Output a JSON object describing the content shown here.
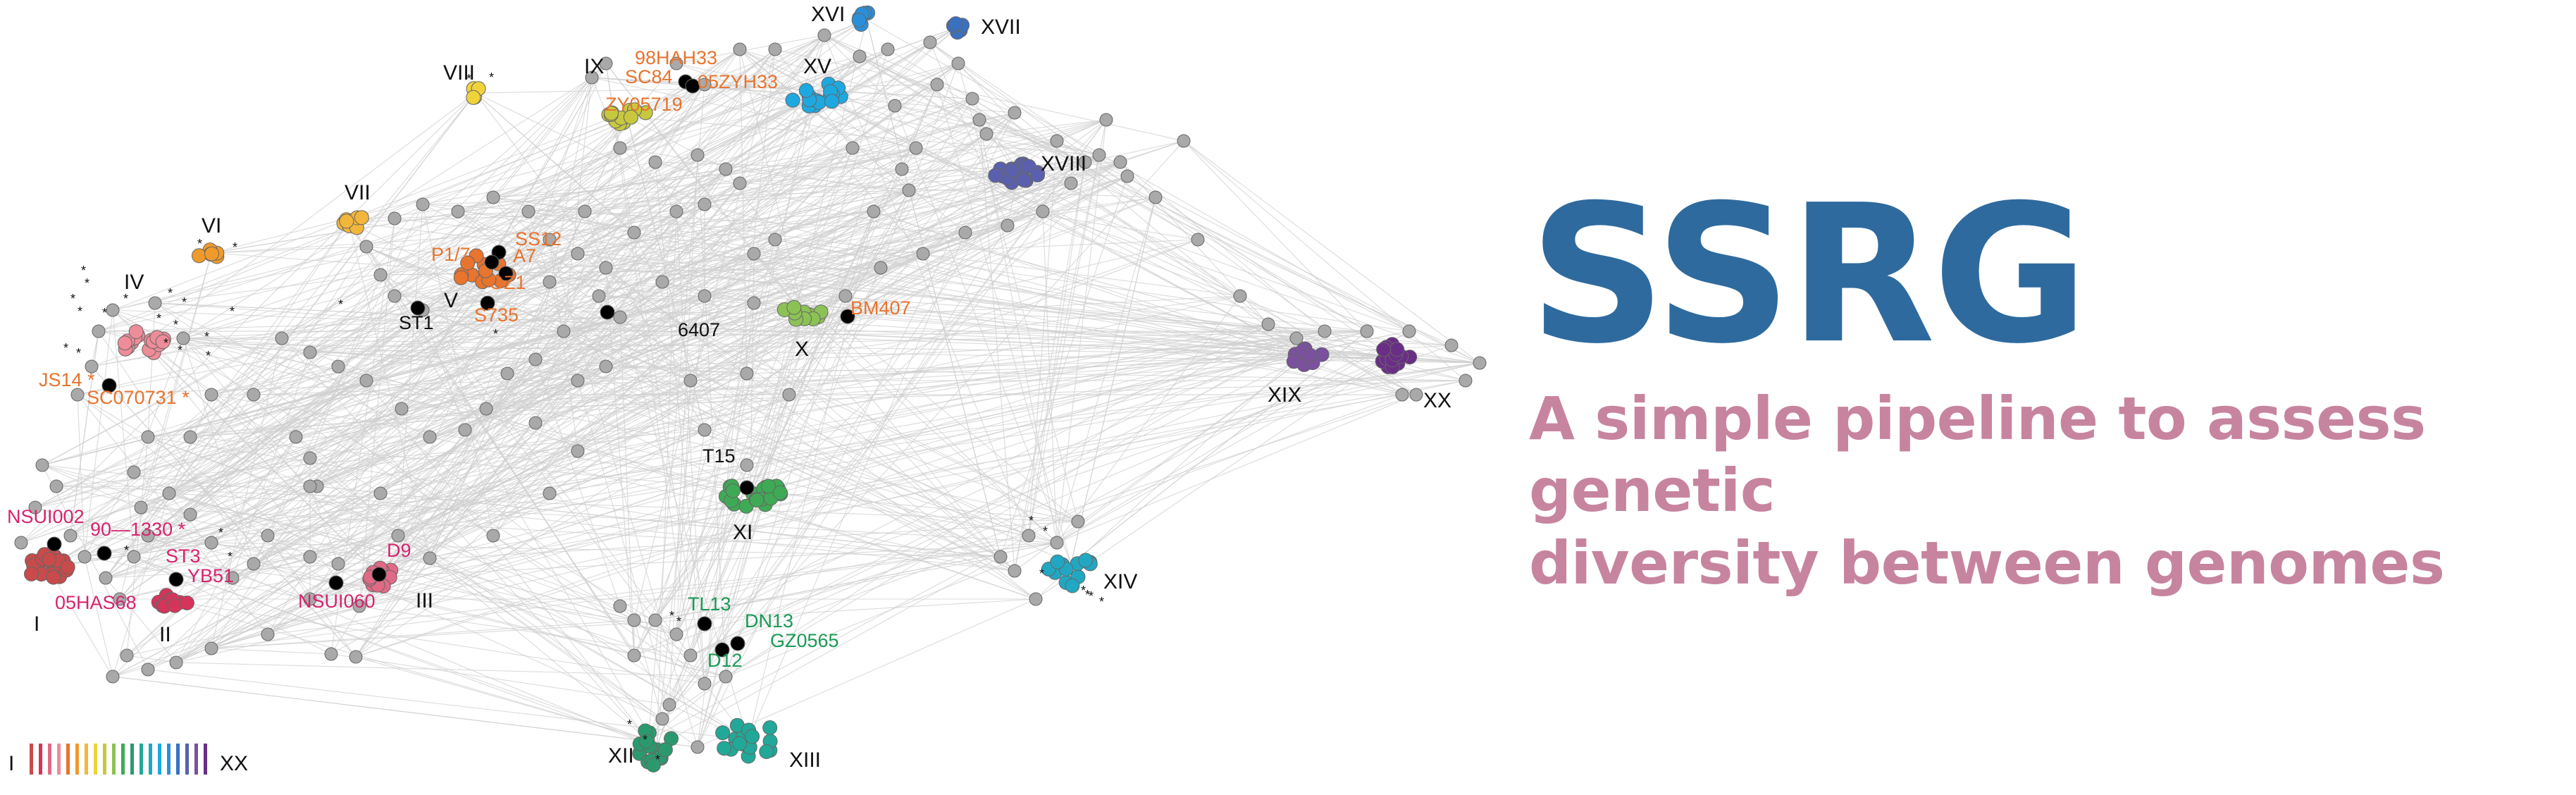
{
  "brand": {
    "title": "SSRG",
    "subtitle_line1": "A simple pipeline to assess genetic",
    "subtitle_line2": "diversity between genomes",
    "title_color": "#2e6a9e",
    "subtitle_color": "#c7849f"
  },
  "network": {
    "edge_color": "#cfcfcf",
    "node_fill": "#a9a9a9",
    "node_stroke": "#666666",
    "reference_node_color": "#000000",
    "clusters": [
      {
        "id": "I",
        "color": "#c94a4a"
      },
      {
        "id": "II",
        "color": "#d6345a"
      },
      {
        "id": "III",
        "color": "#e06a85"
      },
      {
        "id": "IV",
        "color": "#ee8c98"
      },
      {
        "id": "V",
        "color": "#e8742e"
      },
      {
        "id": "VI",
        "color": "#f09a2c"
      },
      {
        "id": "VII",
        "color": "#f2b73a"
      },
      {
        "id": "VIII",
        "color": "#f0d23a"
      },
      {
        "id": "IX",
        "color": "#c7c83e"
      },
      {
        "id": "X",
        "color": "#8cc255"
      },
      {
        "id": "XI",
        "color": "#3faa55"
      },
      {
        "id": "XII",
        "color": "#2a9a6e"
      },
      {
        "id": "XIII",
        "color": "#22a898"
      },
      {
        "id": "XIV",
        "color": "#21a7c2"
      },
      {
        "id": "XV",
        "color": "#1ea8e0"
      },
      {
        "id": "XVI",
        "color": "#2a8fd8"
      },
      {
        "id": "XVII",
        "color": "#3a70c0"
      },
      {
        "id": "XVIII",
        "color": "#5a60ad"
      },
      {
        "id": "XIX",
        "color": "#7a509f"
      },
      {
        "id": "XX",
        "color": "#6a2e86"
      }
    ],
    "strain_labels": [
      {
        "text": "98HAH33",
        "color": "#e8742e"
      },
      {
        "text": "SC84",
        "color": "#e8742e"
      },
      {
        "text": "05ZYH33",
        "color": "#e8742e"
      },
      {
        "text": "ZY05719",
        "color": "#e8742e"
      },
      {
        "text": "SS12",
        "color": "#e8742e"
      },
      {
        "text": "P1/7",
        "color": "#e8742e"
      },
      {
        "text": "A7",
        "color": "#e8742e"
      },
      {
        "text": "GZ1",
        "color": "#e8742e"
      },
      {
        "text": "S735",
        "color": "#e8742e"
      },
      {
        "text": "ST1",
        "color": "#111111"
      },
      {
        "text": "6407",
        "color": "#111111"
      },
      {
        "text": "BM407",
        "color": "#e8742e"
      },
      {
        "text": "JS14 *",
        "color": "#e8742e"
      },
      {
        "text": "SC070731 *",
        "color": "#e8742e"
      },
      {
        "text": "T15",
        "color": "#111111"
      },
      {
        "text": "NSUI002",
        "color": "#d6246e"
      },
      {
        "text": "90—1330 *",
        "color": "#d6246e"
      },
      {
        "text": "ST3",
        "color": "#d6246e"
      },
      {
        "text": "YB51",
        "color": "#d6246e"
      },
      {
        "text": "05HAS68",
        "color": "#d6246e"
      },
      {
        "text": "D9",
        "color": "#d6246e"
      },
      {
        "text": "NSUI060",
        "color": "#d6246e"
      },
      {
        "text": "TL13",
        "color": "#1a9a55"
      },
      {
        "text": "DN13",
        "color": "#1a9a55"
      },
      {
        "text": "GZ0565",
        "color": "#1a9a55"
      },
      {
        "text": "D12",
        "color": "#1a9a55"
      }
    ],
    "legend": {
      "start": "I",
      "end": "XX"
    }
  }
}
